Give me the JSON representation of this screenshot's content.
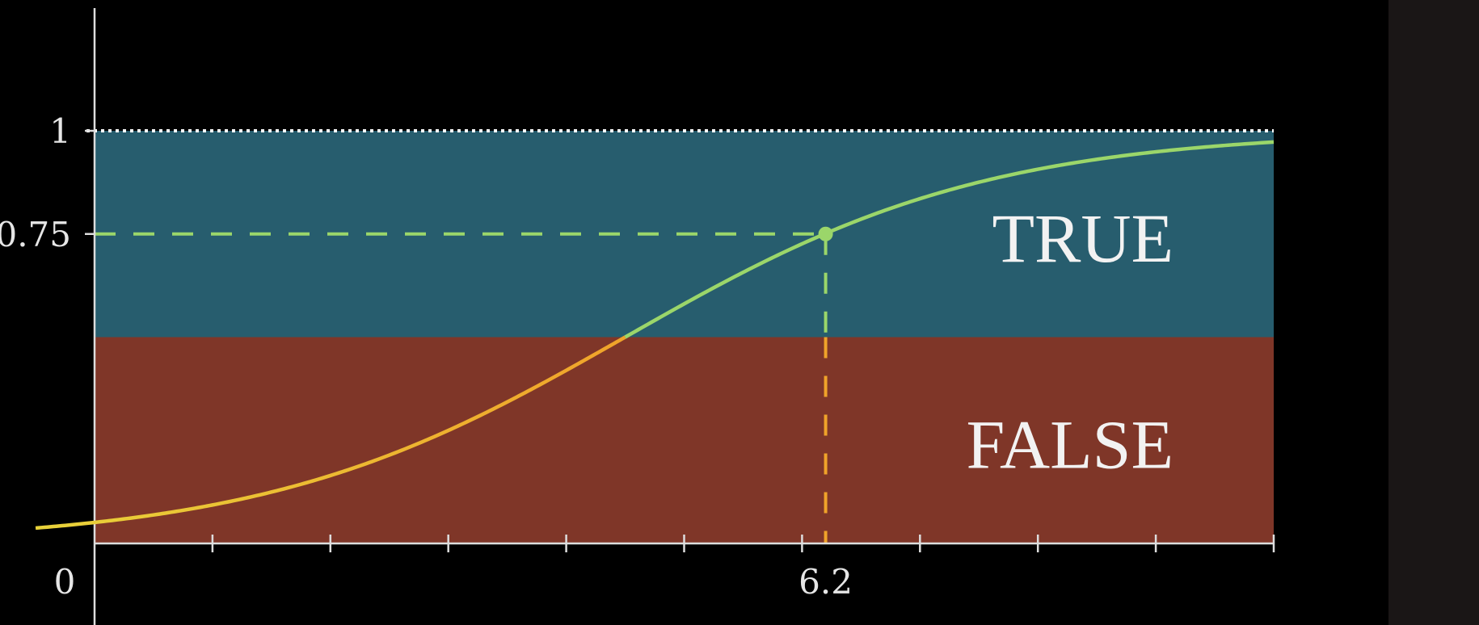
{
  "chart_data": {
    "type": "line",
    "title": "",
    "xlabel": "",
    "ylabel": "",
    "xlim": [
      0,
      10
    ],
    "ylim": [
      0,
      1
    ],
    "x_tick_count": 10,
    "x_tick_labels": [
      {
        "value": 0,
        "label": "0"
      },
      {
        "value": 6.2,
        "label": "6.2"
      }
    ],
    "y_tick_labels": [
      {
        "value": 1,
        "label": "1"
      },
      {
        "value": 0.75,
        "label": "0.75"
      }
    ],
    "regions": [
      {
        "label": "TRUE",
        "y_from": 0.5,
        "y_to": 1,
        "color": "#275d6e"
      },
      {
        "label": "FALSE",
        "y_from": 0,
        "y_to": 0.5,
        "color": "#7f3628"
      }
    ],
    "curve": {
      "kind": "logistic",
      "midpoint": 4.5,
      "steepness": 0.65,
      "x_range": [
        -0.5,
        10
      ],
      "color_above": "#9bd66a",
      "color_below": "#f0a32a",
      "color_low": "#e8d23a"
    },
    "highlight_point": {
      "x": 6.2,
      "y": 0.75,
      "color": "#9bd66a"
    },
    "upper_bound_line": {
      "y": 1,
      "style": "dotted",
      "color": "#ffffff"
    },
    "grid": false
  },
  "colors": {
    "background": "#000000",
    "side_panel": "#1a1616",
    "axis": "#dddddd"
  }
}
